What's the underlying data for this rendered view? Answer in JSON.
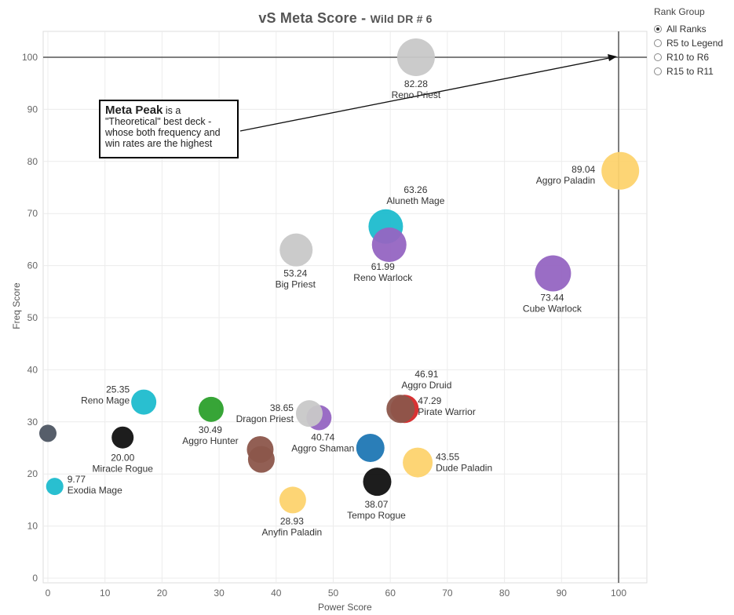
{
  "title": {
    "main": "vS Meta Score",
    "sub": "Wild DR # 6"
  },
  "legend": {
    "title": "Rank Group",
    "items": [
      {
        "label": "All Ranks",
        "selected": true
      },
      {
        "label": "R5 to Legend",
        "selected": false
      },
      {
        "label": "R10 to R6",
        "selected": false
      },
      {
        "label": "R15 to R11",
        "selected": false
      }
    ]
  },
  "annotation": {
    "bold": "Meta Peak",
    "text": "is a \"Theoretical\" best deck - whose both frequency and win rates are the highest"
  },
  "chart_data": {
    "type": "scatter",
    "xlabel": "Power Score",
    "ylabel": "Freq Score",
    "xlim": [
      0,
      105
    ],
    "ylim": [
      0,
      105
    ],
    "xticks": [
      0,
      10,
      20,
      30,
      40,
      50,
      60,
      70,
      80,
      90,
      100
    ],
    "yticks": [
      0,
      10,
      20,
      30,
      40,
      50,
      60,
      70,
      80,
      90,
      100
    ],
    "grid": true,
    "reference_lines": {
      "x": 100,
      "y": 100
    },
    "points": [
      {
        "name": "Reno Priest",
        "score": "82.28",
        "x": 64.5,
        "y": 100,
        "color": "#c8c8c8",
        "r": 24
      },
      {
        "name": "Aggro Paladin",
        "score": "89.04",
        "x": 100.3,
        "y": 78.2,
        "color": "#fdd36e",
        "r": 24
      },
      {
        "name": "Aluneth Mage",
        "score": "63.26",
        "x": 59.2,
        "y": 67.5,
        "color": "#1ebccd",
        "r": 22
      },
      {
        "name": "Reno Warlock",
        "score": "61.99",
        "x": 59.8,
        "y": 64,
        "color": "#9565c2",
        "r": 22
      },
      {
        "name": "Big Priest",
        "score": "53.24",
        "x": 43.5,
        "y": 63,
        "color": "#c8c8c8",
        "r": 21
      },
      {
        "name": "Cube Warlock",
        "score": "73.44",
        "x": 88.5,
        "y": 58.5,
        "color": "#9565c2",
        "r": 23
      },
      {
        "name": "Aggro Druid",
        "score": "46.91",
        "x": 62.5,
        "y": 32.5,
        "color": "#d62728",
        "r": 18
      },
      {
        "name": "Pirate Warrior",
        "score": "47.29",
        "x": 61.8,
        "y": 32.5,
        "color": "#8c564b",
        "r": 18
      },
      {
        "name": "Reno Mage",
        "score": "25.35",
        "x": 16.8,
        "y": 33.8,
        "color": "#1ebccd",
        "r": 16
      },
      {
        "name": "Aggro Hunter",
        "score": "30.49",
        "x": 28.6,
        "y": 32.4,
        "color": "#2ca02c",
        "r": 16
      },
      {
        "name": "Aggro Shaman",
        "score": "40.74",
        "x": 47.5,
        "y": 30.8,
        "color": "#9565c2",
        "r": 16
      },
      {
        "name": "Dragon Priest",
        "score": "38.65",
        "x": 45.8,
        "y": 31.6,
        "color": "#c8c8c8",
        "r": 17
      },
      {
        "name": "",
        "score": "",
        "x": 0,
        "y": 27.8,
        "color": "#4d5562",
        "r": 11
      },
      {
        "name": "Miracle Rogue",
        "score": "20.00",
        "x": 13.1,
        "y": 27,
        "color": "#111111",
        "r": 14
      },
      {
        "name": "",
        "score": "",
        "x": 37.2,
        "y": 24.7,
        "color": "#8c564b",
        "r": 17
      },
      {
        "name": "",
        "score": "",
        "x": 37.4,
        "y": 22.8,
        "color": "#8c564b",
        "r": 17
      },
      {
        "name": "",
        "score": "",
        "x": 56.5,
        "y": 25,
        "color": "#1f77b4",
        "r": 18
      },
      {
        "name": "Dude Paladin",
        "score": "43.55",
        "x": 64.8,
        "y": 22.2,
        "color": "#fdd36e",
        "r": 19
      },
      {
        "name": "Exodia Mage",
        "score": "9.77",
        "x": 1.2,
        "y": 17.6,
        "color": "#1ebccd",
        "r": 11
      },
      {
        "name": "Tempo Rogue",
        "score": "38.07",
        "x": 57.7,
        "y": 18.5,
        "color": "#111111",
        "r": 18
      },
      {
        "name": "Anyfin Paladin",
        "score": "28.93",
        "x": 42.9,
        "y": 15,
        "color": "#fdd36e",
        "r": 17
      }
    ]
  }
}
